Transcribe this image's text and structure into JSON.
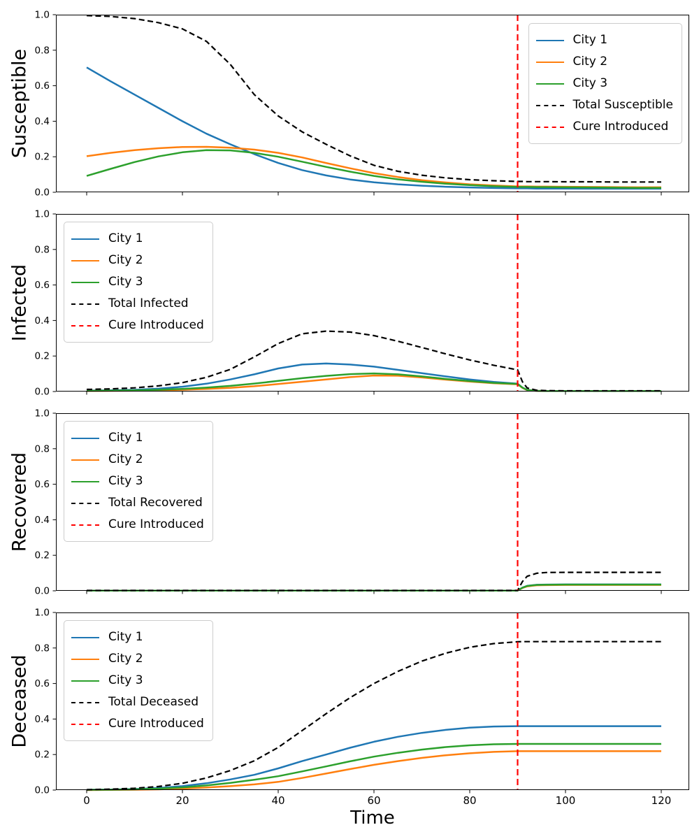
{
  "figure": {
    "xlabel": "Time",
    "x_ticks": [
      0,
      20,
      40,
      60,
      80,
      100,
      120
    ],
    "y_tick_labels": [
      "0.0",
      "0.2",
      "0.4",
      "0.6",
      "0.8",
      "1.0"
    ],
    "xlim": [
      -6.4,
      126.4
    ],
    "ylim": [
      0,
      1
    ],
    "colors": {
      "city1": "#1f77b4",
      "city2": "#ff7f0e",
      "city3": "#2ca02c",
      "total": "#000000",
      "cure": "#ff0000",
      "legend_border": "#cccccc"
    }
  },
  "chart_data": [
    {
      "type": "line",
      "ylabel": "Susceptible",
      "legend_position": "upper-right",
      "legend_entries": [
        "City 1",
        "City 2",
        "City 3",
        "Total Susceptible",
        "Cure Introduced"
      ],
      "x": [
        0,
        5,
        10,
        15,
        20,
        25,
        30,
        35,
        40,
        45,
        50,
        55,
        60,
        65,
        70,
        75,
        80,
        85,
        90,
        91,
        92,
        94,
        96,
        100,
        105,
        110,
        115,
        120
      ],
      "series": [
        {
          "name": "City 1",
          "color": "#1f77b4",
          "style": "solid",
          "values": [
            0.703,
            0.625,
            0.55,
            0.475,
            0.4,
            0.33,
            0.27,
            0.215,
            0.165,
            0.125,
            0.095,
            0.072,
            0.056,
            0.045,
            0.037,
            0.031,
            0.027,
            0.024,
            0.022,
            0.022,
            0.022,
            0.021,
            0.021,
            0.021,
            0.02,
            0.02,
            0.02,
            0.02
          ]
        },
        {
          "name": "City 2",
          "color": "#ff7f0e",
          "style": "solid",
          "values": [
            0.203,
            0.222,
            0.237,
            0.248,
            0.255,
            0.256,
            0.251,
            0.24,
            0.222,
            0.196,
            0.165,
            0.135,
            0.108,
            0.086,
            0.068,
            0.055,
            0.045,
            0.038,
            0.033,
            0.033,
            0.033,
            0.032,
            0.032,
            0.031,
            0.03,
            0.029,
            0.028,
            0.028
          ]
        },
        {
          "name": "City 3",
          "color": "#2ca02c",
          "style": "solid",
          "values": [
            0.092,
            0.132,
            0.17,
            0.202,
            0.225,
            0.237,
            0.236,
            0.222,
            0.2,
            0.172,
            0.143,
            0.116,
            0.092,
            0.073,
            0.059,
            0.048,
            0.04,
            0.034,
            0.03,
            0.03,
            0.03,
            0.029,
            0.029,
            0.028,
            0.027,
            0.026,
            0.025,
            0.025
          ]
        },
        {
          "name": "Total Susceptible",
          "color": "#000000",
          "style": "dashed",
          "values": [
            0.995,
            0.99,
            0.978,
            0.955,
            0.92,
            0.85,
            0.72,
            0.55,
            0.43,
            0.34,
            0.27,
            0.205,
            0.152,
            0.118,
            0.096,
            0.081,
            0.071,
            0.065,
            0.061,
            0.061,
            0.06,
            0.06,
            0.06,
            0.059,
            0.059,
            0.058,
            0.058,
            0.058
          ]
        }
      ],
      "vline": {
        "label": "Cure Introduced",
        "x": 90,
        "color": "#ff0000",
        "style": "dashed"
      }
    },
    {
      "type": "line",
      "ylabel": "Infected",
      "legend_position": "upper-left",
      "legend_entries": [
        "City 1",
        "City 2",
        "City 3",
        "Total Infected",
        "Cure Introduced"
      ],
      "x": [
        0,
        5,
        10,
        15,
        20,
        25,
        30,
        35,
        40,
        45,
        50,
        55,
        60,
        65,
        70,
        75,
        80,
        85,
        90,
        91,
        92,
        94,
        96,
        100,
        105,
        110,
        115,
        120
      ],
      "series": [
        {
          "name": "City 1",
          "color": "#1f77b4",
          "style": "solid",
          "values": [
            0.005,
            0.007,
            0.01,
            0.016,
            0.027,
            0.044,
            0.068,
            0.097,
            0.13,
            0.152,
            0.158,
            0.152,
            0.14,
            0.122,
            0.103,
            0.085,
            0.068,
            0.054,
            0.044,
            0.022,
            0.009,
            0.004,
            0.003,
            0.003,
            0.003,
            0.003,
            0.003,
            0.003
          ]
        },
        {
          "name": "City 2",
          "color": "#ff7f0e",
          "style": "solid",
          "values": [
            0.003,
            0.004,
            0.005,
            0.007,
            0.01,
            0.015,
            0.021,
            0.03,
            0.042,
            0.055,
            0.068,
            0.081,
            0.09,
            0.089,
            0.079,
            0.067,
            0.056,
            0.047,
            0.041,
            0.021,
            0.008,
            0.004,
            0.003,
            0.003,
            0.003,
            0.003,
            0.003,
            0.003
          ]
        },
        {
          "name": "City 3",
          "color": "#2ca02c",
          "style": "solid",
          "values": [
            0.004,
            0.005,
            0.007,
            0.01,
            0.015,
            0.022,
            0.032,
            0.045,
            0.06,
            0.075,
            0.088,
            0.098,
            0.102,
            0.097,
            0.085,
            0.071,
            0.059,
            0.049,
            0.043,
            0.022,
            0.009,
            0.004,
            0.003,
            0.003,
            0.003,
            0.003,
            0.003,
            0.003
          ]
        },
        {
          "name": "Total Infected",
          "color": "#000000",
          "style": "dashed",
          "values": [
            0.012,
            0.015,
            0.021,
            0.032,
            0.05,
            0.08,
            0.125,
            0.195,
            0.27,
            0.325,
            0.34,
            0.335,
            0.315,
            0.283,
            0.248,
            0.212,
            0.178,
            0.148,
            0.122,
            0.055,
            0.02,
            0.007,
            0.005,
            0.004,
            0.004,
            0.004,
            0.004,
            0.004
          ]
        }
      ],
      "vline": {
        "label": "Cure Introduced",
        "x": 90,
        "color": "#ff0000",
        "style": "dashed"
      }
    },
    {
      "type": "line",
      "ylabel": "Recovered",
      "legend_position": "upper-left",
      "legend_entries": [
        "City 1",
        "City 2",
        "City 3",
        "Total Recovered",
        "Cure Introduced"
      ],
      "x": [
        0,
        5,
        10,
        15,
        20,
        25,
        30,
        35,
        40,
        45,
        50,
        55,
        60,
        65,
        70,
        75,
        80,
        85,
        90,
        91,
        92,
        94,
        96,
        100,
        105,
        110,
        115,
        120
      ],
      "series": [
        {
          "name": "City 1",
          "color": "#1f77b4",
          "style": "solid",
          "values": [
            0.001,
            0.001,
            0.001,
            0.001,
            0.001,
            0.001,
            0.001,
            0.001,
            0.001,
            0.001,
            0.001,
            0.001,
            0.001,
            0.001,
            0.001,
            0.001,
            0.001,
            0.001,
            0.001,
            0.018,
            0.028,
            0.034,
            0.035,
            0.036,
            0.036,
            0.036,
            0.036,
            0.036
          ]
        },
        {
          "name": "City 2",
          "color": "#ff7f0e",
          "style": "solid",
          "values": [
            0.001,
            0.001,
            0.001,
            0.001,
            0.001,
            0.001,
            0.001,
            0.001,
            0.001,
            0.001,
            0.001,
            0.001,
            0.001,
            0.001,
            0.001,
            0.001,
            0.001,
            0.001,
            0.001,
            0.016,
            0.025,
            0.031,
            0.032,
            0.033,
            0.033,
            0.033,
            0.033,
            0.033
          ]
        },
        {
          "name": "City 3",
          "color": "#2ca02c",
          "style": "solid",
          "values": [
            0.001,
            0.001,
            0.001,
            0.001,
            0.001,
            0.001,
            0.001,
            0.001,
            0.001,
            0.001,
            0.001,
            0.001,
            0.001,
            0.001,
            0.001,
            0.001,
            0.001,
            0.001,
            0.001,
            0.017,
            0.027,
            0.033,
            0.034,
            0.035,
            0.035,
            0.035,
            0.035,
            0.035
          ]
        },
        {
          "name": "Total Recovered",
          "color": "#000000",
          "style": "dashed",
          "values": [
            0.002,
            0.002,
            0.002,
            0.002,
            0.002,
            0.002,
            0.002,
            0.002,
            0.002,
            0.002,
            0.002,
            0.002,
            0.002,
            0.002,
            0.002,
            0.002,
            0.002,
            0.002,
            0.002,
            0.052,
            0.082,
            0.099,
            0.103,
            0.104,
            0.104,
            0.104,
            0.104,
            0.104
          ]
        }
      ],
      "vline": {
        "label": "Cure Introduced",
        "x": 90,
        "color": "#ff0000",
        "style": "dashed"
      }
    },
    {
      "type": "line",
      "ylabel": "Deceased",
      "legend_position": "upper-left",
      "legend_entries": [
        "City 1",
        "City 2",
        "City 3",
        "Total Deceased",
        "Cure Introduced"
      ],
      "x": [
        0,
        5,
        10,
        15,
        20,
        25,
        30,
        35,
        40,
        45,
        50,
        55,
        60,
        65,
        70,
        75,
        80,
        85,
        90,
        91,
        92,
        94,
        96,
        100,
        105,
        110,
        115,
        120
      ],
      "series": [
        {
          "name": "City 1",
          "color": "#1f77b4",
          "style": "solid",
          "values": [
            0.001,
            0.003,
            0.006,
            0.012,
            0.022,
            0.038,
            0.06,
            0.086,
            0.122,
            0.163,
            0.2,
            0.238,
            0.272,
            0.3,
            0.322,
            0.339,
            0.351,
            0.358,
            0.36,
            0.36,
            0.36,
            0.36,
            0.36,
            0.36,
            0.36,
            0.36,
            0.36,
            0.36
          ]
        },
        {
          "name": "City 2",
          "color": "#ff7f0e",
          "style": "solid",
          "values": [
            0.0,
            0.001,
            0.002,
            0.004,
            0.008,
            0.014,
            0.022,
            0.032,
            0.046,
            0.068,
            0.093,
            0.118,
            0.142,
            0.163,
            0.181,
            0.196,
            0.207,
            0.215,
            0.219,
            0.219,
            0.219,
            0.219,
            0.219,
            0.219,
            0.219,
            0.219,
            0.219,
            0.219
          ]
        },
        {
          "name": "City 3",
          "color": "#2ca02c",
          "style": "solid",
          "values": [
            0.001,
            0.002,
            0.004,
            0.008,
            0.015,
            0.026,
            0.04,
            0.058,
            0.078,
            0.105,
            0.133,
            0.162,
            0.188,
            0.21,
            0.228,
            0.242,
            0.252,
            0.258,
            0.26,
            0.26,
            0.26,
            0.26,
            0.26,
            0.26,
            0.26,
            0.26,
            0.26,
            0.26
          ]
        },
        {
          "name": "Total Deceased",
          "color": "#000000",
          "style": "dashed",
          "values": [
            0.002,
            0.005,
            0.01,
            0.02,
            0.038,
            0.068,
            0.11,
            0.165,
            0.24,
            0.335,
            0.43,
            0.52,
            0.6,
            0.668,
            0.726,
            0.771,
            0.804,
            0.825,
            0.835,
            0.836,
            0.836,
            0.836,
            0.836,
            0.836,
            0.836,
            0.836,
            0.836,
            0.836
          ]
        }
      ],
      "vline": {
        "label": "Cure Introduced",
        "x": 90,
        "color": "#ff0000",
        "style": "dashed"
      }
    }
  ]
}
